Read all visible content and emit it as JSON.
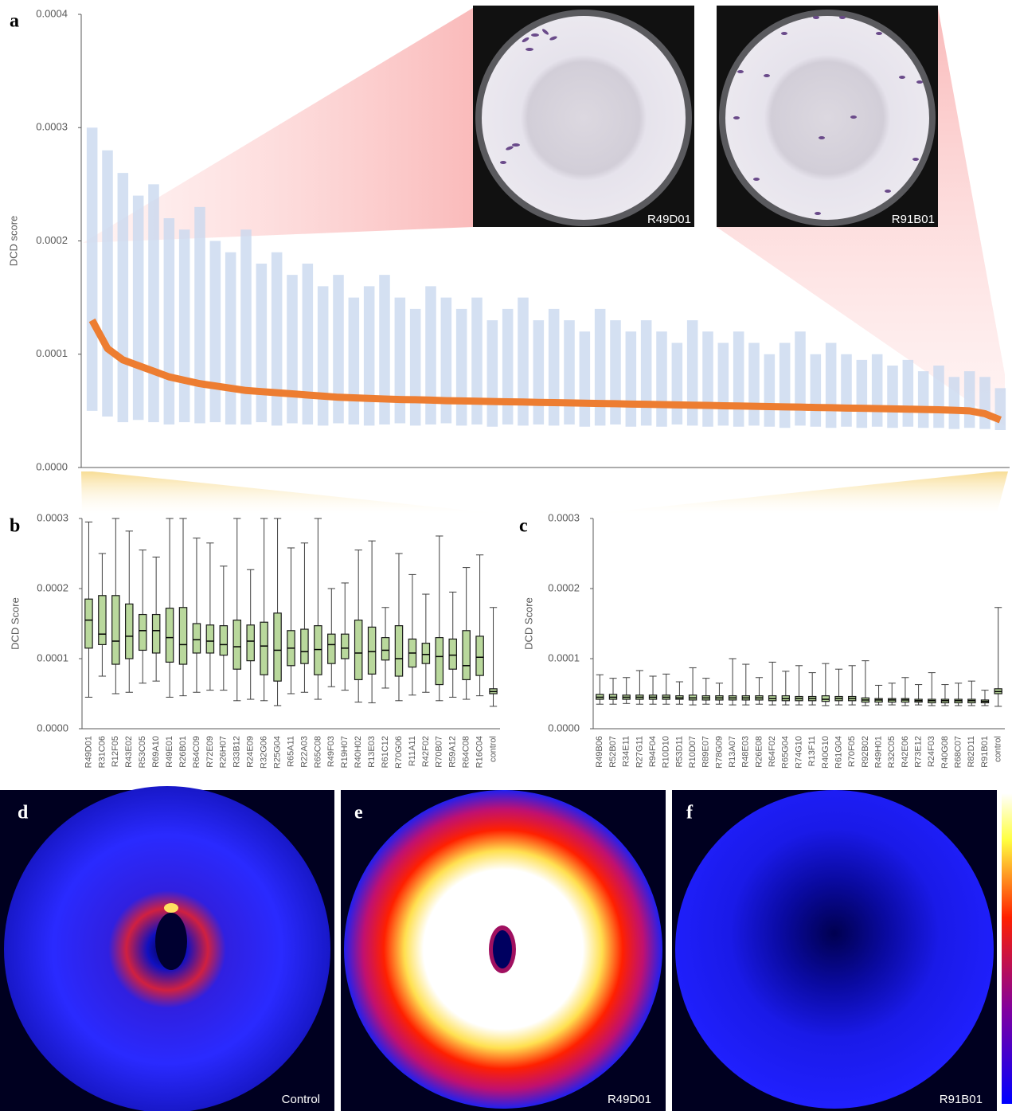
{
  "chart_data": [
    {
      "type": "rank-range",
      "ylabel": "DCD score",
      "ylim": [
        0,
        0.0004
      ],
      "yticks": [
        {
          "value": 0,
          "label": "0.0000"
        },
        0.0001,
        0.0002,
        0.0003,
        0.0004
      ],
      "median_color": "#ed7d31",
      "whisker_color": "#c9d8ef",
      "median": [
        0.00013,
        0.000105,
        9.5e-05,
        9e-05,
        8.5e-05,
        8e-05,
        7.7e-05,
        7.4e-05,
        7.2e-05,
        7e-05,
        6.8e-05,
        6.7e-05,
        6.6e-05,
        6.5e-05,
        6.4e-05,
        6.3e-05,
        6.2e-05,
        6.15e-05,
        6.1e-05,
        6.05e-05,
        6e-05,
        5.98e-05,
        5.95e-05,
        5.9e-05,
        5.88e-05,
        5.85e-05,
        5.83e-05,
        5.8e-05,
        5.78e-05,
        5.75e-05,
        5.73e-05,
        5.7e-05,
        5.68e-05,
        5.65e-05,
        5.63e-05,
        5.6e-05,
        5.58e-05,
        5.55e-05,
        5.53e-05,
        5.5e-05,
        5.48e-05,
        5.45e-05,
        5.43e-05,
        5.4e-05,
        5.38e-05,
        5.35e-05,
        5.33e-05,
        5.3e-05,
        5.28e-05,
        5.25e-05,
        5.23e-05,
        5.2e-05,
        5.18e-05,
        5.15e-05,
        5.12e-05,
        5.1e-05,
        5.05e-05,
        5e-05,
        4.75e-05,
        4.2e-05
      ],
      "high": [
        0.0003,
        0.00028,
        0.00026,
        0.00024,
        0.00025,
        0.00022,
        0.00021,
        0.00023,
        0.0002,
        0.00019,
        0.00021,
        0.00018,
        0.00019,
        0.00017,
        0.00018,
        0.00016,
        0.00017,
        0.00015,
        0.00016,
        0.00017,
        0.00015,
        0.00014,
        0.00016,
        0.00015,
        0.00014,
        0.00015,
        0.00013,
        0.00014,
        0.00015,
        0.00013,
        0.00014,
        0.00013,
        0.00012,
        0.00014,
        0.00013,
        0.00012,
        0.00013,
        0.00012,
        0.00011,
        0.00013,
        0.00012,
        0.00011,
        0.00012,
        0.00011,
        0.0001,
        0.00011,
        0.00012,
        0.0001,
        0.00011,
        0.0001,
        9.5e-05,
        0.0001,
        9e-05,
        9.5e-05,
        8.5e-05,
        9e-05,
        8e-05,
        8.5e-05,
        8e-05,
        7e-05
      ],
      "low": [
        5e-05,
        4.5e-05,
        4e-05,
        4.2e-05,
        4e-05,
        3.8e-05,
        4e-05,
        3.9e-05,
        4e-05,
        3.8e-05,
        3.8e-05,
        4e-05,
        3.7e-05,
        3.9e-05,
        3.8e-05,
        3.7e-05,
        3.9e-05,
        3.8e-05,
        3.7e-05,
        3.8e-05,
        3.9e-05,
        3.7e-05,
        3.8e-05,
        3.9e-05,
        3.7e-05,
        3.8e-05,
        3.6e-05,
        3.8e-05,
        3.7e-05,
        3.8e-05,
        3.7e-05,
        3.8e-05,
        3.6e-05,
        3.7e-05,
        3.8e-05,
        3.6e-05,
        3.7e-05,
        3.6e-05,
        3.8e-05,
        3.7e-05,
        3.6e-05,
        3.7e-05,
        3.6e-05,
        3.7e-05,
        3.6e-05,
        3.5e-05,
        3.7e-05,
        3.6e-05,
        3.5e-05,
        3.6e-05,
        3.5e-05,
        3.6e-05,
        3.5e-05,
        3.6e-05,
        3.5e-05,
        3.5e-05,
        3.4e-05,
        3.5e-05,
        3.4e-05,
        3.3e-05
      ]
    },
    {
      "type": "box",
      "ylabel": "DCD Score",
      "ylim": [
        0,
        0.0003
      ],
      "yticks": [
        {
          "value": 0,
          "label": "0.0000"
        },
        0.0001,
        0.0002,
        0.0003
      ],
      "color": "#b9d89c",
      "categories": [
        "R49D01",
        "R31C06",
        "R12F05",
        "R43E02",
        "R53C05",
        "R69A10",
        "R49E01",
        "R26B01",
        "R64C09",
        "R72E09",
        "R26H07",
        "R33B12",
        "R24E09",
        "R32G06",
        "R25G04",
        "R65A11",
        "R22A03",
        "R65C08",
        "R49F03",
        "R19H07",
        "R40H02",
        "R13E03",
        "R61C12",
        "R70G06",
        "R11A11",
        "R42F02",
        "R70B07",
        "R59A12",
        "R64C08",
        "R16C04",
        "control"
      ],
      "low": [
        4.5e-05,
        7.5e-05,
        5e-05,
        5.2e-05,
        6.5e-05,
        6.8e-05,
        4.5e-05,
        4.7e-05,
        5.2e-05,
        5.5e-05,
        5.5e-05,
        4e-05,
        4.2e-05,
        4e-05,
        3.3e-05,
        5e-05,
        5.2e-05,
        4.2e-05,
        6e-05,
        5.5e-05,
        3.8e-05,
        3.7e-05,
        5.8e-05,
        4e-05,
        4.8e-05,
        5.2e-05,
        4e-05,
        4.5e-05,
        4.2e-05,
        4.7e-05,
        3.2e-05
      ],
      "q1": [
        0.000115,
        0.00012,
        9.2e-05,
        0.0001,
        0.000112,
        0.000108,
        9.5e-05,
        9.2e-05,
        0.000108,
        0.000108,
        0.000105,
        8.5e-05,
        9.7e-05,
        7.7e-05,
        6.8e-05,
        9e-05,
        9.3e-05,
        7.7e-05,
        9.3e-05,
        0.0001,
        7e-05,
        7.8e-05,
        9.8e-05,
        7.5e-05,
        8.8e-05,
        9.3e-05,
        6.3e-05,
        8.5e-05,
        7e-05,
        7.6e-05,
        5e-05
      ],
      "median": [
        0.000155,
        0.000135,
        0.000125,
        0.000132,
        0.00014,
        0.00014,
        0.00013,
        0.00012,
        0.000127,
        0.000125,
        0.00012,
        0.000117,
        0.000125,
        0.000118,
        0.000112,
        0.000115,
        0.00011,
        0.000113,
        0.00012,
        0.000115,
        0.000108,
        0.00011,
        0.000112,
        0.0001,
        0.000108,
        0.000106,
        0.000103,
        0.000105,
        9e-05,
        0.000102,
        5.3e-05
      ],
      "q3": [
        0.000185,
        0.00019,
        0.00019,
        0.000178,
        0.000163,
        0.000163,
        0.000172,
        0.000173,
        0.00015,
        0.000148,
        0.000147,
        0.000155,
        0.000148,
        0.000152,
        0.000165,
        0.00014,
        0.000142,
        0.000147,
        0.000135,
        0.000135,
        0.000155,
        0.000145,
        0.00013,
        0.000147,
        0.000128,
        0.000122,
        0.00013,
        0.000128,
        0.00014,
        0.000132,
        5.7e-05
      ],
      "high": [
        0.000295,
        0.00025,
        0.0003,
        0.000282,
        0.000255,
        0.000245,
        0.0003,
        0.0003,
        0.000272,
        0.000265,
        0.000232,
        0.0003,
        0.000227,
        0.0003,
        0.0003,
        0.000258,
        0.000265,
        0.0003,
        0.0002,
        0.000208,
        0.000255,
        0.000268,
        0.000173,
        0.00025,
        0.00022,
        0.000192,
        0.000275,
        0.000195,
        0.00023,
        0.000248,
        0.000173
      ]
    },
    {
      "type": "box",
      "ylabel": "DCD Score",
      "ylim": [
        0,
        0.0003
      ],
      "yticks": [
        {
          "value": 0,
          "label": "0.0000"
        },
        0.0001,
        0.0002,
        0.0003
      ],
      "color": "#b9d89c",
      "categories": [
        "R49B06",
        "R52B07",
        "R34E11",
        "R27G11",
        "R94F04",
        "R10D10",
        "R53D11",
        "R10D07",
        "R89E07",
        "R78G09",
        "R13A07",
        "R48E03",
        "R26E08",
        "R64F02",
        "R65G04",
        "R74G10",
        "R13F11",
        "R40G10",
        "R61G04",
        "R70F05",
        "R92B02",
        "R49H01",
        "R32C05",
        "R42E06",
        "R73E12",
        "R24F03",
        "R40G08",
        "R68C07",
        "R82D11",
        "R91B01",
        "control"
      ],
      "low": [
        3.5e-05,
        3.5e-05,
        3.6e-05,
        3.5e-05,
        3.5e-05,
        3.5e-05,
        3.5e-05,
        3.4e-05,
        3.5e-05,
        3.5e-05,
        3.4e-05,
        3.4e-05,
        3.5e-05,
        3.4e-05,
        3.4e-05,
        3.4e-05,
        3.4e-05,
        3.3e-05,
        3.4e-05,
        3.4e-05,
        3.3e-05,
        3.4e-05,
        3.4e-05,
        3.3e-05,
        3.4e-05,
        3.3e-05,
        3.3e-05,
        3.3e-05,
        3.3e-05,
        3.3e-05,
        3.2e-05
      ],
      "q1": [
        4.2e-05,
        4.2e-05,
        4.2e-05,
        4.2e-05,
        4.2e-05,
        4.2e-05,
        4.2e-05,
        4.1e-05,
        4.1e-05,
        4.1e-05,
        4.1e-05,
        4.1e-05,
        4.1e-05,
        4e-05,
        4e-05,
        4e-05,
        4e-05,
        3.9e-05,
        4e-05,
        4e-05,
        3.8e-05,
        3.8e-05,
        3.8e-05,
        3.8e-05,
        3.8e-05,
        3.7e-05,
        3.7e-05,
        3.7e-05,
        3.7e-05,
        3.7e-05,
        5e-05
      ],
      "median": [
        4.5e-05,
        4.5e-05,
        4.5e-05,
        4.5e-05,
        4.5e-05,
        4.5e-05,
        4.4e-05,
        4.4e-05,
        4.4e-05,
        4.4e-05,
        4.4e-05,
        4.4e-05,
        4.4e-05,
        4.3e-05,
        4.3e-05,
        4.3e-05,
        4.3e-05,
        4.2e-05,
        4.3e-05,
        4.3e-05,
        4.1e-05,
        4.1e-05,
        4.1e-05,
        4.1e-05,
        4e-05,
        4e-05,
        4e-05,
        4e-05,
        4e-05,
        3.9e-05,
        5.3e-05
      ],
      "q3": [
        4.9e-05,
        4.9e-05,
        4.8e-05,
        4.8e-05,
        4.8e-05,
        4.8e-05,
        4.7e-05,
        4.8e-05,
        4.7e-05,
        4.7e-05,
        4.7e-05,
        4.7e-05,
        4.7e-05,
        4.7e-05,
        4.7e-05,
        4.6e-05,
        4.6e-05,
        4.7e-05,
        4.6e-05,
        4.6e-05,
        4.4e-05,
        4.3e-05,
        4.3e-05,
        4.3e-05,
        4.2e-05,
        4.2e-05,
        4.2e-05,
        4.2e-05,
        4.2e-05,
        4.1e-05,
        5.7e-05
      ],
      "high": [
        7.7e-05,
        7.2e-05,
        7.3e-05,
        8.3e-05,
        7.5e-05,
        7.8e-05,
        6.7e-05,
        8.7e-05,
        7.2e-05,
        6.5e-05,
        0.0001,
        9.2e-05,
        7.3e-05,
        9.5e-05,
        8.2e-05,
        9e-05,
        8e-05,
        9.3e-05,
        8.5e-05,
        9e-05,
        9.7e-05,
        6.2e-05,
        6.5e-05,
        7.3e-05,
        6.3e-05,
        8e-05,
        6.3e-05,
        6.5e-05,
        6.8e-05,
        5.5e-05,
        0.000173
      ]
    }
  ],
  "panel_labels": [
    "a",
    "b",
    "c",
    "d",
    "e",
    "f"
  ],
  "insets": [
    {
      "label": "R49D01"
    },
    {
      "label": "R91B01"
    }
  ],
  "heatmaps": [
    {
      "label": "Control"
    },
    {
      "label": "R49D01"
    },
    {
      "label": "R91B01"
    }
  ]
}
